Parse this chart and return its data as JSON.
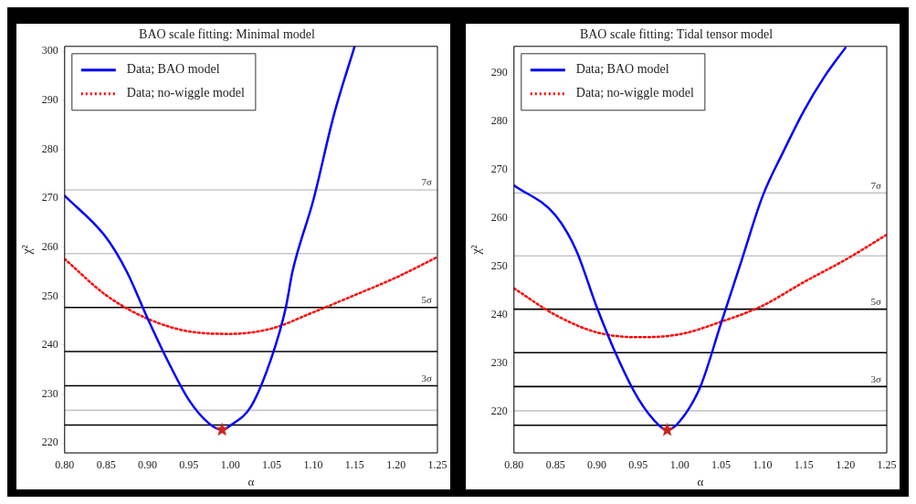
{
  "chart_data": [
    {
      "type": "line",
      "title": "BAO scale fitting: Minimal model",
      "xlabel": "α",
      "ylabel": "χ²",
      "xlim": [
        0.8,
        1.25
      ],
      "xticks": [
        {
          "value": 0.8,
          "label": "0.80"
        },
        0.85,
        {
          "value": 0.9,
          "label": "0.90"
        },
        0.95,
        {
          "value": 1.0,
          "label": "1.00"
        },
        1.05,
        {
          "value": 1.1,
          "label": "1.10"
        },
        1.15,
        {
          "value": 1.2,
          "label": "1.20"
        },
        1.25
      ],
      "ylim": [
        218,
        301
      ],
      "yticks": [
        220,
        230,
        240,
        250,
        260,
        270,
        280,
        290,
        300
      ],
      "grid": false,
      "legend": "top left",
      "series": [
        {
          "name": "Data; BAO model",
          "color": "#0000ff",
          "line_style": "solid",
          "marker": "none",
          "x": [
            0.8,
            0.85,
            0.875,
            0.9,
            0.925,
            0.95,
            0.975,
            0.99,
            1.0,
            1.025,
            1.05,
            1.067,
            1.075,
            1.1,
            1.125,
            1.15
          ],
          "values": [
            270.5,
            262,
            255,
            245.5,
            236.6,
            228.8,
            223.9,
            222.7,
            223.6,
            227.5,
            237.6,
            247.7,
            255,
            269.5,
            287,
            301
          ]
        },
        {
          "name": "Data; no-wiggle model",
          "color": "#ff0000",
          "line_style": "dotted",
          "marker": "none",
          "x": [
            0.8,
            0.85,
            0.9,
            0.95,
            1.0,
            1.05,
            1.1,
            1.15,
            1.2,
            1.25
          ],
          "values": [
            257.6,
            250.2,
            245.4,
            242.8,
            242.3,
            243.4,
            246.7,
            250.2,
            253.8,
            258
          ]
        },
        {
          "type": "scatter",
          "color": "#cc2222",
          "marker": "star",
          "x": [
            0.99
          ],
          "values": [
            222.7
          ]
        }
      ],
      "ref_lines": [
        {
          "axis": "y",
          "value": 223.7,
          "label": null,
          "color": "#000000"
        },
        {
          "axis": "y",
          "value": 226.7,
          "label": null,
          "color": "#c8c8c8"
        },
        {
          "axis": "y",
          "value": 231.7,
          "label": "3σ",
          "color": "#000000"
        },
        {
          "axis": "y",
          "value": 238.7,
          "label": null,
          "color": "#000000"
        },
        {
          "axis": "y",
          "value": 247.7,
          "label": "5σ",
          "color": "#000000"
        },
        {
          "axis": "y",
          "value": 258.7,
          "label": null,
          "color": "#c8c8c8"
        },
        {
          "axis": "y",
          "value": 271.7,
          "label": "7σ",
          "color": "#c8c8c8"
        }
      ]
    },
    {
      "type": "line",
      "title": "BAO scale fitting: Tidal tensor model",
      "xlabel": "α",
      "ylabel": "χ²",
      "xlim": [
        0.8,
        1.25
      ],
      "xticks": [
        {
          "value": 0.8,
          "label": "0.80"
        },
        0.85,
        {
          "value": 0.9,
          "label": "0.90"
        },
        0.95,
        {
          "value": 1.0,
          "label": "1.00"
        },
        1.05,
        {
          "value": 1.1,
          "label": "1.10"
        },
        1.15,
        {
          "value": 1.2,
          "label": "1.20"
        },
        1.25
      ],
      "ylim": [
        211.5,
        295.5
      ],
      "yticks": [
        220,
        230,
        240,
        250,
        260,
        270,
        280,
        290
      ],
      "grid": false,
      "legend": "top left",
      "series": [
        {
          "name": "Data; BAO model",
          "color": "#0000ff",
          "line_style": "solid",
          "marker": "none",
          "x": [
            0.8,
            0.85,
            0.875,
            0.9,
            0.925,
            0.95,
            0.975,
            0.985,
            1.0,
            1.025,
            1.05,
            1.075,
            1.1,
            1.125,
            1.15,
            1.175,
            1.2
          ],
          "values": [
            266.8,
            260.6,
            253.4,
            241.6,
            231.2,
            222.7,
            217.2,
            216.2,
            218,
            225.2,
            238.3,
            251.4,
            264.5,
            273.7,
            282.2,
            289.3,
            295.2
          ]
        },
        {
          "name": "Data; no-wiggle model",
          "color": "#ff0000",
          "line_style": "dotted",
          "marker": "none",
          "x": [
            0.8,
            0.85,
            0.9,
            0.95,
            1.0,
            1.05,
            1.1,
            1.15,
            1.2,
            1.25
          ],
          "values": [
            245.5,
            240,
            236.4,
            235.4,
            236,
            238.6,
            241.9,
            246.8,
            251.4,
            256.6
          ]
        },
        {
          "type": "scatter",
          "color": "#cc2222",
          "marker": "star",
          "x": [
            0.985
          ],
          "values": [
            216.2
          ]
        }
      ],
      "ref_lines": [
        {
          "axis": "y",
          "value": 217.2,
          "label": null,
          "color": "#000000"
        },
        {
          "axis": "y",
          "value": 220.2,
          "label": null,
          "color": "#c8c8c8"
        },
        {
          "axis": "y",
          "value": 225.2,
          "label": "3σ",
          "color": "#000000"
        },
        {
          "axis": "y",
          "value": 232.2,
          "label": null,
          "color": "#000000"
        },
        {
          "axis": "y",
          "value": 241.2,
          "label": "5σ",
          "color": "#000000"
        },
        {
          "axis": "y",
          "value": 252.2,
          "label": null,
          "color": "#c8c8c8"
        },
        {
          "axis": "y",
          "value": 265.2,
          "label": "7σ",
          "color": "#c8c8c8"
        }
      ]
    }
  ]
}
